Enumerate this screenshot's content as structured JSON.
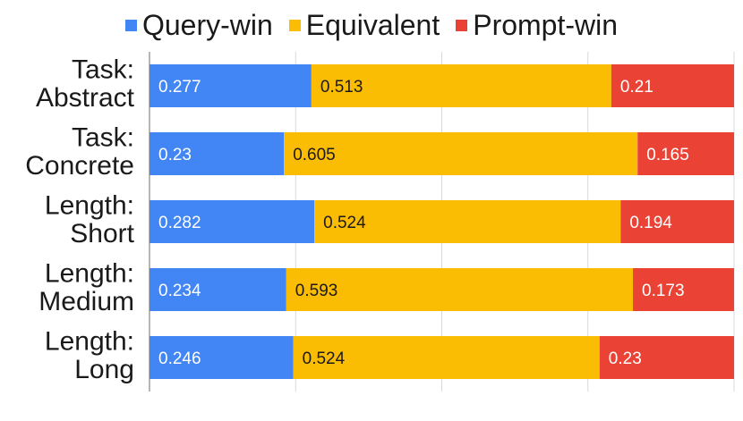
{
  "colors": {
    "query_win": "#4285f4",
    "equivalent": "#fbbc04",
    "prompt_win": "#ea4335",
    "grid": "#d9d9d9",
    "axis": "#9e9e9e",
    "text": "#1a1a1a"
  },
  "legend": [
    {
      "label": "Query-win",
      "color": "#4285f4"
    },
    {
      "label": "Equivalent",
      "color": "#fbbc04"
    },
    {
      "label": "Prompt-win",
      "color": "#ea4335"
    }
  ],
  "chart_data": {
    "type": "bar",
    "orientation": "horizontal",
    "stacked": true,
    "title": "",
    "xlabel": "",
    "ylabel": "",
    "xlim": [
      0,
      1
    ],
    "grid": true,
    "legend_position": "top",
    "categories": [
      [
        "Task:",
        "Abstract"
      ],
      [
        "Task:",
        "Concrete"
      ],
      [
        "Length:",
        "Short"
      ],
      [
        "Length:",
        "Medium"
      ],
      [
        "Length:",
        "Long"
      ]
    ],
    "series": [
      {
        "name": "Query-win",
        "color": "#4285f4",
        "label_color": "#ffffff",
        "values": [
          0.277,
          0.23,
          0.282,
          0.234,
          0.246
        ],
        "labels": [
          "0.277",
          "0.23",
          "0.282",
          "0.234",
          "0.246"
        ]
      },
      {
        "name": "Equivalent",
        "color": "#fbbc04",
        "label_color": "#1a1a1a",
        "values": [
          0.513,
          0.605,
          0.524,
          0.593,
          0.524
        ],
        "labels": [
          "0.513",
          "0.605",
          "0.524",
          "0.593",
          "0.524"
        ]
      },
      {
        "name": "Prompt-win",
        "color": "#ea4335",
        "label_color": "#ffffff",
        "values": [
          0.21,
          0.165,
          0.194,
          0.173,
          0.23
        ],
        "labels": [
          "0.21",
          "0.165",
          "0.194",
          "0.173",
          "0.23"
        ]
      }
    ]
  }
}
